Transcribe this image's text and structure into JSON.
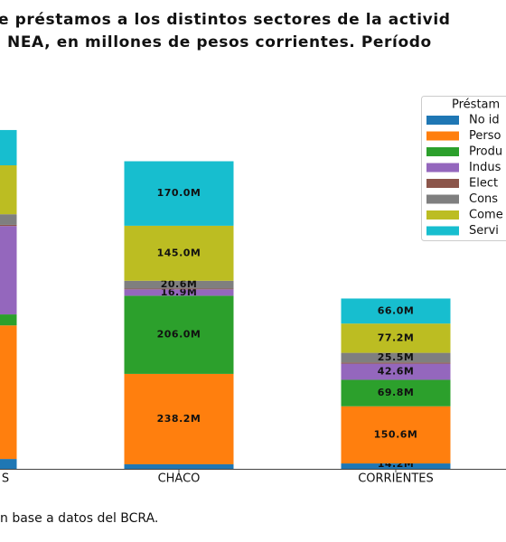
{
  "chart_data": {
    "type": "stacked_bar",
    "title": [
      "e préstamos a los distintos sectores de la activid",
      "NEA, en millones de pesos corrientes. Período"
    ],
    "footnote": "n base a datos del BCRA.",
    "legend_title": "Préstam",
    "legend_position": "upper right",
    "categories": [
      "S",
      "CHACO",
      "CORRIENTES"
    ],
    "ylim": [
      0,
      900
    ],
    "series": [
      {
        "name": "No id",
        "color": "#1f77b4",
        "values": [
          26,
          12,
          14.2
        ],
        "value_labels": [
          null,
          null,
          "14.2M"
        ]
      },
      {
        "name": "Perso",
        "color": "#ff7f0e",
        "values": [
          352,
          238.2,
          150.6
        ],
        "value_labels": [
          null,
          "238.2M",
          "150.6M"
        ]
      },
      {
        "name": "Produ",
        "color": "#2ca02c",
        "values": [
          29,
          206.0,
          69.8
        ],
        "value_labels": [
          null,
          "206.0M",
          "69.8M"
        ]
      },
      {
        "name": "Indus",
        "color": "#9467bd",
        "values": [
          233,
          16.9,
          42.6
        ],
        "value_labels": [
          null,
          "16.9M",
          "42.6M"
        ]
      },
      {
        "name": "Elect",
        "color": "#8c564b",
        "values": [
          3,
          2,
          3
        ],
        "value_labels": [
          null,
          null,
          null
        ]
      },
      {
        "name": "Cons",
        "color": "#7f7f7f",
        "values": [
          28,
          20.6,
          25.5
        ],
        "value_labels": [
          null,
          "20.6M",
          "25.5M"
        ]
      },
      {
        "name": "Come",
        "color": "#bcbd22",
        "values": [
          129,
          145.0,
          77.2
        ],
        "value_labels": [
          null,
          "145.0M",
          "77.2M"
        ]
      },
      {
        "name": "Servi",
        "color": "#17becf",
        "values": [
          93,
          170.0,
          66.0
        ],
        "value_labels": [
          null,
          "170.0M",
          "66.0M"
        ]
      }
    ]
  }
}
